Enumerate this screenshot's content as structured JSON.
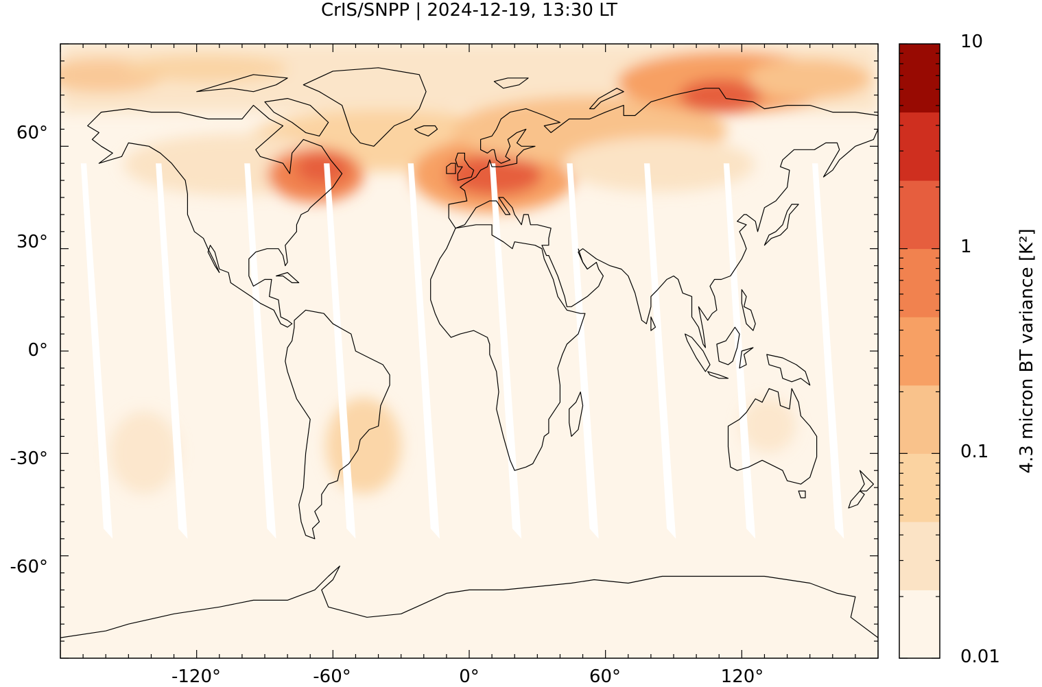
{
  "title": "CrIS/SNPP | 2024-12-19, 13:30 LT",
  "map": {
    "projection": "equirectangular",
    "lon_range": [
      -180,
      180
    ],
    "lat_range": [
      -90,
      90
    ],
    "lon_ticks": [
      {
        "value": -120,
        "label": "-120°"
      },
      {
        "value": -60,
        "label": "-60°"
      },
      {
        "value": 0,
        "label": "0°"
      },
      {
        "value": 60,
        "label": "60°"
      },
      {
        "value": 120,
        "label": "120°"
      }
    ],
    "lat_ticks": [
      {
        "value": 60,
        "label": "60°"
      },
      {
        "value": 30,
        "label": "30°"
      },
      {
        "value": 0,
        "label": "0°"
      },
      {
        "value": -30,
        "label": "-30°"
      },
      {
        "value": -60,
        "label": "-60°"
      }
    ],
    "background_color": "#fef5e9",
    "coastline_color": "#000000",
    "orbit_gap_color": "#ffffff"
  },
  "colorbar": {
    "label": "4.3 micron BT variance [K²]",
    "scale": "log",
    "range": [
      0.01,
      10
    ],
    "tick_labels": [
      {
        "value": 10,
        "label": "10"
      },
      {
        "value": 1,
        "label": "1"
      },
      {
        "value": 0.1,
        "label": "0.1"
      },
      {
        "value": 0.01,
        "label": "0.01"
      }
    ],
    "levels": [
      {
        "color": "#fef5e9"
      },
      {
        "color": "#fbe3c5"
      },
      {
        "color": "#fbd3a1"
      },
      {
        "color": "#f9c28b"
      },
      {
        "color": "#f7a064"
      },
      {
        "color": "#f1824f"
      },
      {
        "color": "#e65e3e"
      },
      {
        "color": "#cf2f1f"
      },
      {
        "color": "#980a02"
      }
    ]
  }
}
